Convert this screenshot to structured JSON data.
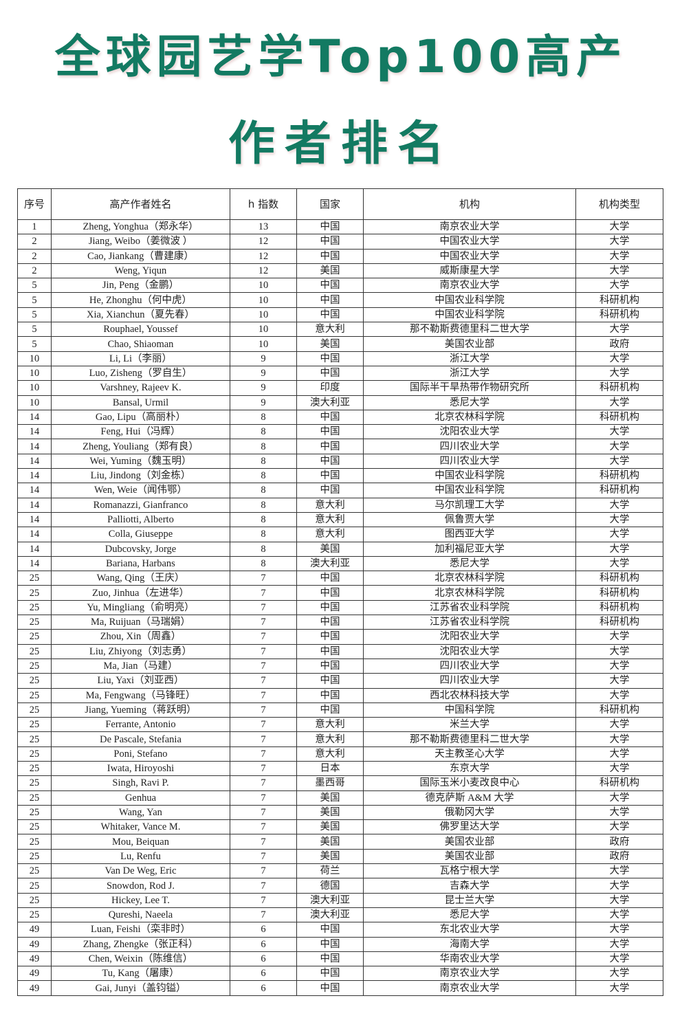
{
  "title": {
    "line1": "全球园艺学Top100高产",
    "line2": "作者排名"
  },
  "colors": {
    "title": "#137a62",
    "border": "#333333"
  },
  "table": {
    "headers": [
      "序号",
      "高产作者姓名",
      "h 指数",
      "国家",
      "机构",
      "机构类型"
    ],
    "rows": [
      [
        "1",
        "Zheng, Yonghua（郑永华）",
        "13",
        "中国",
        "南京农业大学",
        "大学"
      ],
      [
        "2",
        "Jiang, Weibo（姜微波 ）",
        "12",
        "中国",
        "中国农业大学",
        "大学"
      ],
      [
        "2",
        "Cao, Jiankang（曹建康）",
        "12",
        "中国",
        "中国农业大学",
        "大学"
      ],
      [
        "2",
        "Weng, Yiqun",
        "12",
        "美国",
        "威斯康星大学",
        "大学"
      ],
      [
        "5",
        "Jin, Peng（金鹏）",
        "10",
        "中国",
        "南京农业大学",
        "大学"
      ],
      [
        "5",
        "He, Zhonghu（何中虎）",
        "10",
        "中国",
        "中国农业科学院",
        "科研机构"
      ],
      [
        "5",
        "Xia, Xianchun（夏先春）",
        "10",
        "中国",
        "中国农业科学院",
        "科研机构"
      ],
      [
        "5",
        "Rouphael, Youssef",
        "10",
        "意大利",
        "那不勒斯费德里科二世大学",
        "大学"
      ],
      [
        "5",
        "Chao, Shiaoman",
        "10",
        "美国",
        "美国农业部",
        "政府"
      ],
      [
        "10",
        "Li, Li（李丽）",
        "9",
        "中国",
        "浙江大学",
        "大学"
      ],
      [
        "10",
        "Luo, Zisheng（罗自生）",
        "9",
        "中国",
        "浙江大学",
        "大学"
      ],
      [
        "10",
        "Varshney, Rajeev K.",
        "9",
        "印度",
        "国际半干旱热带作物研究所",
        "科研机构"
      ],
      [
        "10",
        "Bansal, Urmil",
        "9",
        "澳大利亚",
        "悉尼大学",
        "大学"
      ],
      [
        "14",
        "Gao, Lipu（高丽朴）",
        "8",
        "中国",
        "北京农林科学院",
        "科研机构"
      ],
      [
        "14",
        "Feng, Hui（冯辉）",
        "8",
        "中国",
        "沈阳农业大学",
        "大学"
      ],
      [
        "14",
        "Zheng, Youliang（郑有良）",
        "8",
        "中国",
        "四川农业大学",
        "大学"
      ],
      [
        "14",
        "Wei, Yuming（魏玉明）",
        "8",
        "中国",
        "四川农业大学",
        "大学"
      ],
      [
        "14",
        "Liu, Jindong（刘金栋）",
        "8",
        "中国",
        "中国农业科学院",
        "科研机构"
      ],
      [
        "14",
        "Wen, Weie（闻伟鄂）",
        "8",
        "中国",
        "中国农业科学院",
        "科研机构"
      ],
      [
        "14",
        "Romanazzi, Gianfranco",
        "8",
        "意大利",
        "马尔凯理工大学",
        "大学"
      ],
      [
        "14",
        "Palliotti, Alberto",
        "8",
        "意大利",
        "佩鲁贾大学",
        "大学"
      ],
      [
        "14",
        "Colla, Giuseppe",
        "8",
        "意大利",
        "图西亚大学",
        "大学"
      ],
      [
        "14",
        "Dubcovsky, Jorge",
        "8",
        "美国",
        "加利福尼亚大学",
        "大学"
      ],
      [
        "14",
        "Bariana, Harbans",
        "8",
        "澳大利亚",
        "悉尼大学",
        "大学"
      ],
      [
        "25",
        "Wang, Qing（王庆）",
        "7",
        "中国",
        "北京农林科学院",
        "科研机构"
      ],
      [
        "25",
        "Zuo, Jinhua（左进华）",
        "7",
        "中国",
        "北京农林科学院",
        "科研机构"
      ],
      [
        "25",
        "Yu, Mingliang（俞明亮）",
        "7",
        "中国",
        "江苏省农业科学院",
        "科研机构"
      ],
      [
        "25",
        "Ma, Ruijuan（马瑞娟）",
        "7",
        "中国",
        "江苏省农业科学院",
        "科研机构"
      ],
      [
        "25",
        "Zhou, Xin（周鑫）",
        "7",
        "中国",
        "沈阳农业大学",
        "大学"
      ],
      [
        "25",
        "Liu, Zhiyong（刘志勇）",
        "7",
        "中国",
        "沈阳农业大学",
        "大学"
      ],
      [
        "25",
        "Ma, Jian（马建）",
        "7",
        "中国",
        "四川农业大学",
        "大学"
      ],
      [
        "25",
        "Liu, Yaxi（刘亚西）",
        "7",
        "中国",
        "四川农业大学",
        "大学"
      ],
      [
        "25",
        "Ma, Fengwang（马锋旺）",
        "7",
        "中国",
        "西北农林科技大学",
        "大学"
      ],
      [
        "25",
        "Jiang, Yueming（蒋跃明）",
        "7",
        "中国",
        "中国科学院",
        "科研机构"
      ],
      [
        "25",
        "Ferrante, Antonio",
        "7",
        "意大利",
        "米兰大学",
        "大学"
      ],
      [
        "25",
        "De Pascale, Stefania",
        "7",
        "意大利",
        "那不勒斯费德里科二世大学",
        "大学"
      ],
      [
        "25",
        "Poni, Stefano",
        "7",
        "意大利",
        "天主教圣心大学",
        "大学"
      ],
      [
        "25",
        "Iwata, Hiroyoshi",
        "7",
        "日本",
        "东京大学",
        "大学"
      ],
      [
        "25",
        "Singh, Ravi P.",
        "7",
        "墨西哥",
        "国际玉米小麦改良中心",
        "科研机构"
      ],
      [
        "25",
        "Genhua",
        "7",
        "美国",
        "德克萨斯 A&M 大学",
        "大学"
      ],
      [
        "25",
        "Wang, Yan",
        "7",
        "美国",
        "俄勒冈大学",
        "大学"
      ],
      [
        "25",
        "Whitaker, Vance M.",
        "7",
        "美国",
        "佛罗里达大学",
        "大学"
      ],
      [
        "25",
        "Mou, Beiquan",
        "7",
        "美国",
        "美国农业部",
        "政府"
      ],
      [
        "25",
        "Lu, Renfu",
        "7",
        "美国",
        "美国农业部",
        "政府"
      ],
      [
        "25",
        "Van De Weg, Eric",
        "7",
        "荷兰",
        "瓦格宁根大学",
        "大学"
      ],
      [
        "25",
        "Snowdon, Rod J.",
        "7",
        "德国",
        "吉森大学",
        "大学"
      ],
      [
        "25",
        "Hickey, Lee T.",
        "7",
        "澳大利亚",
        "昆士兰大学",
        "大学"
      ],
      [
        "25",
        "Qureshi, Naeela",
        "7",
        "澳大利亚",
        "悉尼大学",
        "大学"
      ],
      [
        "49",
        "Luan, Feishi（栾非时）",
        "6",
        "中国",
        "东北农业大学",
        "大学"
      ],
      [
        "49",
        "Zhang, Zhengke（张正科）",
        "6",
        "中国",
        "海南大学",
        "大学"
      ],
      [
        "49",
        "Chen, Weixin（陈维信）",
        "6",
        "中国",
        "华南农业大学",
        "大学"
      ],
      [
        "49",
        "Tu, Kang（屠康）",
        "6",
        "中国",
        "南京农业大学",
        "大学"
      ],
      [
        "49",
        "Gai, Junyi（盖钧镒）",
        "6",
        "中国",
        "南京农业大学",
        "大学"
      ]
    ]
  }
}
